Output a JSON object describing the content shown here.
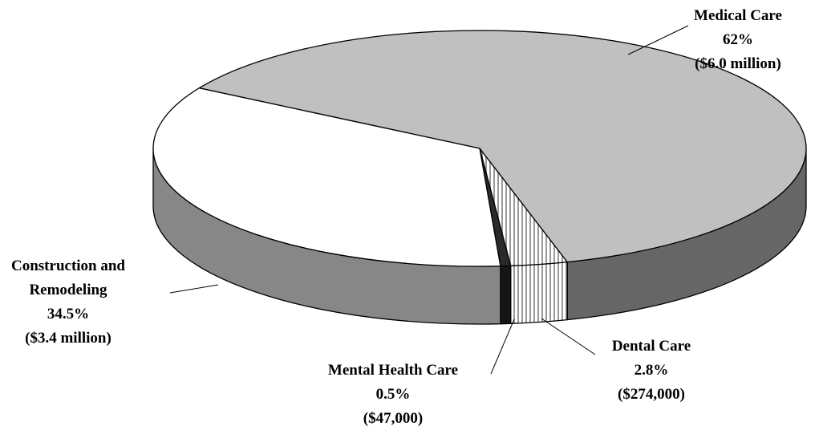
{
  "chart_data": {
    "type": "pie3d",
    "categories": [
      "Medical Care",
      "Dental Care",
      "Mental Health Care",
      "Construction and Remodeling"
    ],
    "values": [
      62,
      2.8,
      0.5,
      34.5
    ],
    "value_labels": [
      "62%",
      "2.8%",
      "0.5%",
      "34.5%"
    ],
    "amount_labels": [
      "($6.0 million)",
      "($274,000)",
      "($47,000)",
      "($3.4 million)"
    ],
    "colors": [
      "#c0c0c0",
      "#a0a0a0",
      "#2a2a2a",
      "#ffffff"
    ],
    "hatched": [
      false,
      true,
      false,
      false
    ]
  }
}
